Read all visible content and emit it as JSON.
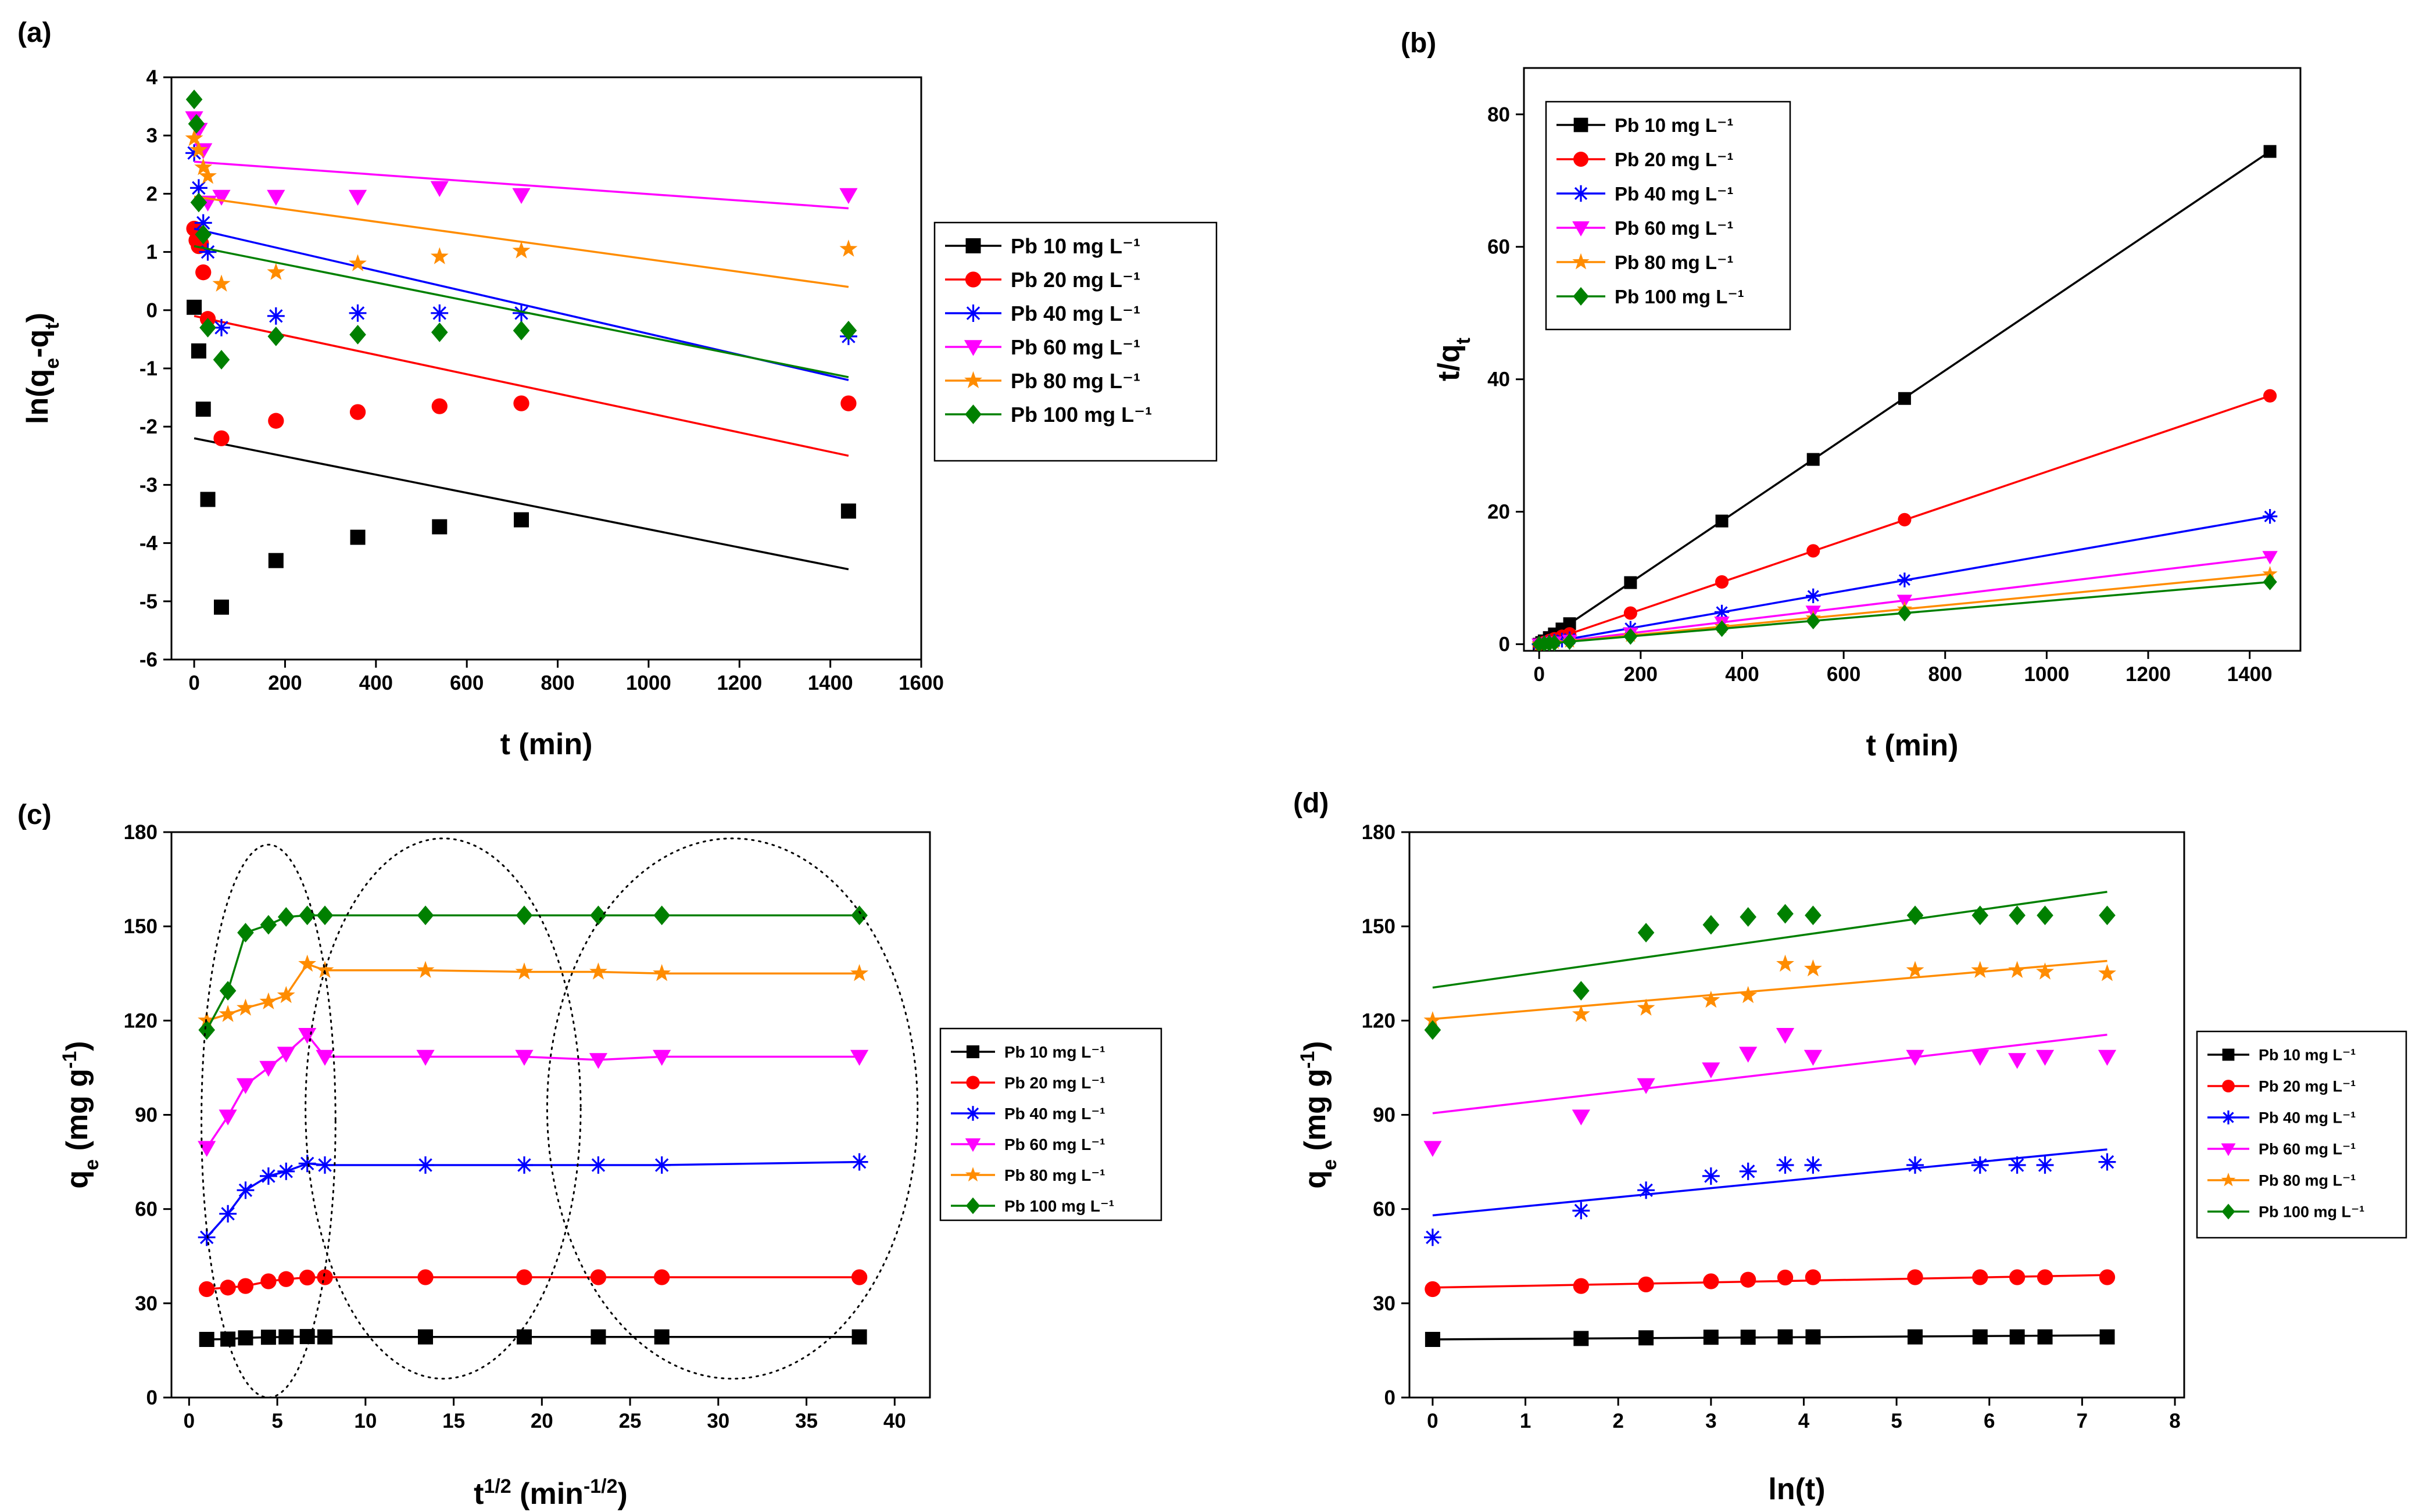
{
  "figure": "Pb adsorption kinetics, four panels",
  "chart_data": [
    {
      "id": "a",
      "panel_label": "(a)",
      "type": "scatter",
      "xlabel": "t (min)",
      "ylabel": "ln(q_e-q_t)",
      "xlim": [
        -50,
        1600
      ],
      "ylim": [
        -6,
        4
      ],
      "xticks": [
        0,
        200,
        400,
        600,
        800,
        1000,
        1200,
        1400,
        1600
      ],
      "yticks": [
        -6,
        -5,
        -4,
        -3,
        -2,
        -1,
        0,
        1,
        2,
        3,
        4
      ],
      "legend_position": "right",
      "series": [
        {
          "name": "Pb 10 mg L⁻¹",
          "color": "#000000",
          "marker": "square",
          "x": [
            0,
            10,
            20,
            30,
            60,
            180,
            360,
            540,
            720,
            1440
          ],
          "y": [
            0.05,
            -0.7,
            -1.7,
            -3.25,
            -5.1,
            -4.3,
            -3.9,
            -3.72,
            -3.6,
            -3.45
          ],
          "fit": [
            [
              0,
              -2.2
            ],
            [
              1440,
              -4.45
            ]
          ]
        },
        {
          "name": "Pb 20 mg L⁻¹",
          "color": "#ff0000",
          "marker": "circle",
          "x": [
            0,
            5,
            10,
            15,
            20,
            30,
            60,
            180,
            360,
            540,
            720,
            1440
          ],
          "y": [
            1.4,
            1.2,
            1.1,
            1.15,
            0.65,
            -0.15,
            -2.2,
            -1.9,
            -1.75,
            -1.65,
            -1.6,
            -1.6
          ],
          "fit": [
            [
              0,
              -0.1
            ],
            [
              1440,
              -2.5
            ]
          ]
        },
        {
          "name": "Pb 40 mg L⁻¹",
          "color": "#0000ff",
          "marker": "asterisk",
          "x": [
            0,
            10,
            20,
            30,
            60,
            180,
            360,
            540,
            720,
            1440
          ],
          "y": [
            2.7,
            2.1,
            1.5,
            1.0,
            -0.3,
            -0.1,
            -0.05,
            -0.05,
            -0.05,
            -0.45
          ],
          "fit": [
            [
              0,
              1.4
            ],
            [
              1440,
              -1.2
            ]
          ]
        },
        {
          "name": "Pb 60 mg L⁻¹",
          "color": "#ff00ff",
          "marker": "triangle-down",
          "x": [
            0,
            10,
            20,
            30,
            60,
            180,
            360,
            540,
            720,
            1440
          ],
          "y": [
            3.3,
            3.1,
            2.75,
            1.85,
            1.95,
            1.95,
            1.95,
            2.1,
            1.98,
            1.98
          ],
          "fit": [
            [
              0,
              2.55
            ],
            [
              1440,
              1.75
            ]
          ]
        },
        {
          "name": "Pb 80 mg L⁻¹",
          "color": "#ff8c00",
          "marker": "star",
          "x": [
            0,
            10,
            20,
            30,
            60,
            180,
            360,
            540,
            720,
            1440
          ],
          "y": [
            2.95,
            2.75,
            2.45,
            2.3,
            0.45,
            0.65,
            0.8,
            0.92,
            1.02,
            1.05
          ],
          "fit": [
            [
              0,
              1.95
            ],
            [
              1440,
              0.4
            ]
          ]
        },
        {
          "name": "Pb 100 mg L⁻¹",
          "color": "#008000",
          "marker": "diamond",
          "x": [
            0,
            5,
            10,
            20,
            30,
            60,
            180,
            360,
            540,
            720,
            1440
          ],
          "y": [
            3.62,
            3.2,
            1.85,
            1.3,
            -0.3,
            -0.85,
            -0.45,
            -0.42,
            -0.38,
            -0.35,
            -0.35
          ],
          "fit": [
            [
              0,
              1.1
            ],
            [
              1440,
              -1.15
            ]
          ]
        }
      ]
    },
    {
      "id": "b",
      "panel_label": "(b)",
      "type": "scatter",
      "xlabel": "t (min)",
      "ylabel": "t/q_t",
      "xlim": [
        -30,
        1500
      ],
      "ylim": [
        -1,
        87
      ],
      "xticks": [
        0,
        200,
        400,
        600,
        800,
        1000,
        1200,
        1400
      ],
      "yticks": [
        0,
        20,
        40,
        60,
        80
      ],
      "legend_position": "top-left",
      "series": [
        {
          "name": "Pb 10 mg L⁻¹",
          "color": "#000000",
          "marker": "square",
          "x": [
            0,
            5,
            10,
            20,
            30,
            45,
            60,
            180,
            360,
            540,
            720,
            1440
          ],
          "y": [
            0,
            0.25,
            0.5,
            1.0,
            1.55,
            2.3,
            3.1,
            9.3,
            18.6,
            27.9,
            37.1,
            74.4
          ],
          "fit": [
            [
              0,
              0
            ],
            [
              1440,
              74.4
            ]
          ]
        },
        {
          "name": "Pb 20 mg L⁻¹",
          "color": "#ff0000",
          "marker": "circle",
          "x": [
            0,
            10,
            20,
            30,
            45,
            60,
            180,
            360,
            540,
            720,
            1440
          ],
          "y": [
            0,
            0.28,
            0.55,
            0.82,
            1.2,
            1.56,
            4.7,
            9.4,
            14.1,
            18.8,
            37.5
          ],
          "fit": [
            [
              0,
              0
            ],
            [
              1440,
              37.5
            ]
          ]
        },
        {
          "name": "Pb 40 mg L⁻¹",
          "color": "#0000ff",
          "marker": "asterisk",
          "x": [
            0,
            10,
            20,
            30,
            45,
            60,
            180,
            360,
            540,
            720,
            1440
          ],
          "y": [
            0,
            0.2,
            0.33,
            0.45,
            0.62,
            0.8,
            2.4,
            4.85,
            7.3,
            9.7,
            19.3
          ],
          "fit": [
            [
              0,
              0
            ],
            [
              1440,
              19.3
            ]
          ]
        },
        {
          "name": "Pb 60 mg L⁻¹",
          "color": "#ff00ff",
          "marker": "triangle-down",
          "x": [
            0,
            10,
            20,
            30,
            60,
            180,
            360,
            540,
            720,
            1440
          ],
          "y": [
            0,
            0.12,
            0.22,
            0.3,
            0.55,
            1.65,
            3.3,
            4.95,
            6.6,
            13.2
          ],
          "fit": [
            [
              0,
              0
            ],
            [
              1440,
              13.2
            ]
          ]
        },
        {
          "name": "Pb 80 mg L⁻¹",
          "color": "#ff8c00",
          "marker": "star",
          "x": [
            0,
            10,
            20,
            30,
            60,
            180,
            360,
            540,
            720,
            1440
          ],
          "y": [
            0,
            0.08,
            0.16,
            0.24,
            0.45,
            1.3,
            2.65,
            3.95,
            5.3,
            10.6
          ],
          "fit": [
            [
              0,
              0
            ],
            [
              1440,
              10.6
            ]
          ]
        },
        {
          "name": "Pb 100 mg L⁻¹",
          "color": "#008000",
          "marker": "diamond",
          "x": [
            0,
            10,
            20,
            30,
            60,
            180,
            360,
            540,
            720,
            1440
          ],
          "y": [
            0,
            0.07,
            0.14,
            0.2,
            0.4,
            1.17,
            2.35,
            3.5,
            4.7,
            9.4
          ],
          "fit": [
            [
              0,
              0
            ],
            [
              1440,
              9.4
            ]
          ]
        }
      ]
    },
    {
      "id": "c",
      "panel_label": "(c)",
      "type": "line",
      "xlabel": "t^(1/2) (min^(-1/2))",
      "ylabel": "q_e (mg g⁻¹)",
      "xlim": [
        -1,
        42
      ],
      "ylim": [
        0,
        180
      ],
      "xticks": [
        0,
        5,
        10,
        15,
        20,
        25,
        30,
        35,
        40
      ],
      "yticks": [
        0,
        30,
        60,
        90,
        120,
        150,
        180
      ],
      "legend_position": "right",
      "series": [
        {
          "name": "Pb 10 mg L⁻¹",
          "color": "#000000",
          "marker": "square",
          "x": [
            1,
            2.2,
            3.2,
            4.5,
            5.5,
            6.7,
            7.7,
            13.4,
            19,
            23.2,
            26.8,
            38
          ],
          "y": [
            18.5,
            18.6,
            19,
            19.2,
            19.3,
            19.4,
            19.3,
            19.3,
            19.3,
            19.3,
            19.3,
            19.3
          ]
        },
        {
          "name": "Pb 20 mg L⁻¹",
          "color": "#ff0000",
          "marker": "circle",
          "x": [
            1,
            2.2,
            3.2,
            4.5,
            5.5,
            6.7,
            7.7,
            13.4,
            19,
            23.2,
            26.8,
            38
          ],
          "y": [
            34.5,
            35,
            35.5,
            37,
            37.7,
            38.2,
            38.3,
            38.3,
            38.3,
            38.3,
            38.3,
            38.3
          ]
        },
        {
          "name": "Pb 40 mg L⁻¹",
          "color": "#0000ff",
          "marker": "asterisk",
          "x": [
            1,
            2.2,
            3.2,
            4.5,
            5.5,
            6.7,
            7.7,
            13.4,
            19,
            23.2,
            26.8,
            38
          ],
          "y": [
            51,
            58.5,
            66,
            70.5,
            72,
            74.5,
            74,
            74,
            74,
            74,
            74,
            75
          ]
        },
        {
          "name": "Pb 60 mg L⁻¹",
          "color": "#ff00ff",
          "marker": "triangle-down",
          "x": [
            1,
            2.2,
            3.2,
            4.5,
            5.5,
            6.7,
            7.7,
            13.4,
            19,
            23.2,
            26.8,
            38
          ],
          "y": [
            79.5,
            89.5,
            99.5,
            105,
            109.5,
            115.5,
            108.5,
            108.5,
            108.5,
            107.5,
            108.5,
            108.5
          ]
        },
        {
          "name": "Pb 80 mg L⁻¹",
          "color": "#ff8c00",
          "marker": "star",
          "x": [
            1,
            2.2,
            3.2,
            4.5,
            5.5,
            6.7,
            7.7,
            13.4,
            19,
            23.2,
            26.8,
            38
          ],
          "y": [
            120,
            122,
            124,
            126,
            128,
            138,
            136,
            136,
            135.5,
            135.5,
            135,
            135
          ]
        },
        {
          "name": "Pb 100 mg L⁻¹",
          "color": "#008000",
          "marker": "diamond",
          "x": [
            1,
            2.2,
            3.2,
            4.5,
            5.5,
            6.7,
            7.7,
            13.4,
            19,
            23.2,
            26.8,
            38
          ],
          "y": [
            117,
            129.5,
            148,
            150.5,
            153,
            153.5,
            153.5,
            153.5,
            153.5,
            153.5,
            153.5,
            153.5
          ]
        }
      ],
      "annotations": [
        {
          "type": "dotted-ellipse",
          "center": [
            4.5,
            88
          ],
          "radius": [
            3.8,
            88
          ]
        },
        {
          "type": "dotted-ellipse",
          "center": [
            14.4,
            92
          ],
          "radius": [
            7.8,
            86
          ]
        },
        {
          "type": "dotted-ellipse",
          "center": [
            30.8,
            92
          ],
          "radius": [
            10.5,
            86
          ]
        }
      ]
    },
    {
      "id": "d",
      "panel_label": "(d)",
      "type": "scatter",
      "xlabel": "ln(t)",
      "ylabel": "q_e (mg g⁻¹)",
      "xlim": [
        -0.25,
        8.1
      ],
      "ylim": [
        0,
        180
      ],
      "xticks": [
        0,
        1,
        2,
        3,
        4,
        5,
        6,
        7,
        8
      ],
      "yticks": [
        0,
        30,
        60,
        90,
        120,
        150,
        180
      ],
      "legend_position": "right",
      "series": [
        {
          "name": "Pb 10 mg L⁻¹",
          "color": "#000000",
          "marker": "square",
          "x": [
            0,
            1.6,
            2.3,
            3.0,
            3.4,
            3.8,
            4.1,
            5.2,
            5.9,
            6.3,
            6.6,
            7.27
          ],
          "y": [
            18.5,
            18.8,
            19,
            19.2,
            19.2,
            19.3,
            19.3,
            19.3,
            19.3,
            19.3,
            19.3,
            19.3
          ],
          "fit": [
            [
              0,
              18.5
            ],
            [
              7.27,
              19.8
            ]
          ]
        },
        {
          "name": "Pb 20 mg L⁻¹",
          "color": "#ff0000",
          "marker": "circle",
          "x": [
            0,
            1.6,
            2.3,
            3.0,
            3.4,
            3.8,
            4.1,
            5.2,
            5.9,
            6.3,
            6.6,
            7.27
          ],
          "y": [
            34.5,
            35.5,
            36,
            37,
            37.5,
            38.2,
            38.3,
            38.3,
            38.3,
            38.3,
            38.3,
            38.3
          ],
          "fit": [
            [
              0,
              35
            ],
            [
              7.27,
              39
            ]
          ]
        },
        {
          "name": "Pb 40 mg L⁻¹",
          "color": "#0000ff",
          "marker": "asterisk",
          "x": [
            0,
            1.6,
            2.3,
            3.0,
            3.4,
            3.8,
            4.1,
            5.2,
            5.9,
            6.3,
            6.6,
            7.27
          ],
          "y": [
            51,
            59.5,
            66,
            70.5,
            72,
            74,
            74,
            74,
            74,
            74,
            74,
            75
          ],
          "fit": [
            [
              0,
              58
            ],
            [
              7.27,
              79
            ]
          ]
        },
        {
          "name": "Pb 60 mg L⁻¹",
          "color": "#ff00ff",
          "marker": "triangle-down",
          "x": [
            0,
            1.6,
            2.3,
            3.0,
            3.4,
            3.8,
            4.1,
            5.2,
            5.9,
            6.3,
            6.6,
            7.27
          ],
          "y": [
            79.5,
            89.5,
            99.5,
            104.5,
            109.5,
            115.5,
            108.5,
            108.5,
            108.5,
            107.5,
            108.5,
            108.5
          ],
          "fit": [
            [
              0,
              90.5
            ],
            [
              7.27,
              115.5
            ]
          ]
        },
        {
          "name": "Pb 80 mg L⁻¹",
          "color": "#ff8c00",
          "marker": "star",
          "x": [
            0,
            1.6,
            2.3,
            3.0,
            3.4,
            3.8,
            4.1,
            5.2,
            5.9,
            6.3,
            6.6,
            7.27
          ],
          "y": [
            120,
            122,
            124,
            126.5,
            128,
            138,
            136.5,
            136,
            136,
            136,
            135.5,
            135
          ],
          "fit": [
            [
              0,
              120.5
            ],
            [
              7.27,
              139
            ]
          ]
        },
        {
          "name": "Pb 100 mg L⁻¹",
          "color": "#008000",
          "marker": "diamond",
          "x": [
            0,
            1.6,
            2.3,
            3.0,
            3.4,
            3.8,
            4.1,
            5.2,
            5.9,
            6.3,
            6.6,
            7.27
          ],
          "y": [
            117,
            129.5,
            148,
            150.5,
            153,
            154,
            153.5,
            153.5,
            153.5,
            153.5,
            153.5,
            153.5
          ],
          "fit": [
            [
              0,
              130.5
            ],
            [
              7.27,
              161
            ]
          ]
        }
      ]
    }
  ]
}
